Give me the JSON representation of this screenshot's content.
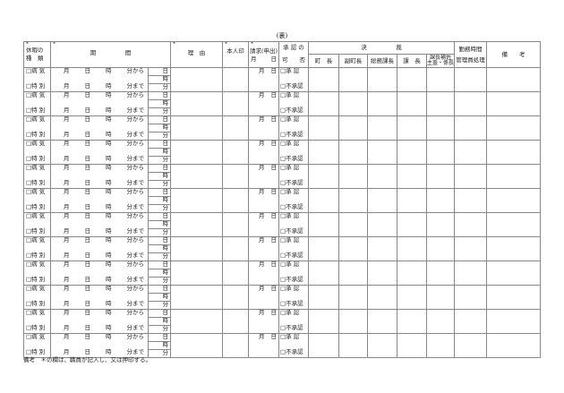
{
  "title": "(裏)",
  "header": {
    "asterisk": "*",
    "kind": [
      "休暇の",
      "種　類"
    ],
    "period": "期　　　　　間",
    "reason": "理　由",
    "seal": "本人印",
    "request": "請求(申出)",
    "request_date": [
      "月",
      "日"
    ],
    "approval": [
      "承 認 の",
      "可　　否"
    ],
    "decision": "決　　　　　裁",
    "decision_cols": [
      "町　長",
      "副町長",
      "総務課長",
      "課　長",
      "課長補佐\n主査・係長"
    ],
    "work_time": [
      "勤務時間",
      "管理員処理"
    ],
    "remarks": "備　　考"
  },
  "row_labels": {
    "sick": "□病 気",
    "special": "□特 別",
    "month": "月",
    "day": "日",
    "hour": "時",
    "from": "分から",
    "until": "分まで",
    "minute": "分",
    "req_month": "月",
    "req_day": "日",
    "approve": "□承 認",
    "reject": "□不承認"
  },
  "row_count": 12,
  "note": "備考　＊の欄は、職員が記入し、又は押印する。"
}
